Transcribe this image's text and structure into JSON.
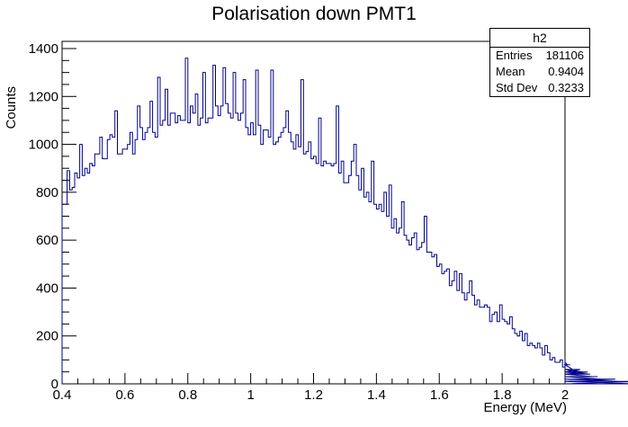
{
  "chart_data": {
    "type": "histogram",
    "title": "Polarisation down PMT1",
    "xlabel": "Energy (MeV)",
    "ylabel": "Counts",
    "xlim": [
      0.4,
      2.0
    ],
    "ylim": [
      0,
      1430
    ],
    "x_ticks": [
      0.4,
      0.6,
      0.8,
      1.0,
      1.2,
      1.4,
      1.6,
      1.8,
      2.0
    ],
    "x_tick_labels": [
      "0.4",
      "0.6",
      "0.8",
      "1",
      "1.2",
      "1.4",
      "1.6",
      "1.8",
      "2"
    ],
    "y_ticks": [
      0,
      200,
      400,
      600,
      800,
      1000,
      1200,
      1400
    ],
    "y_tick_labels": [
      "0",
      "200",
      "400",
      "600",
      "800",
      "1000",
      "1200",
      "1400"
    ],
    "bin_width": 0.008,
    "line_color": "#00008b",
    "values": [
      750,
      750,
      890,
      810,
      820,
      880,
      860,
      1000,
      870,
      900,
      880,
      920,
      910,
      960,
      960,
      1030,
      940,
      940,
      1020,
      1040,
      1030,
      1140,
      960,
      960,
      980,
      980,
      1000,
      1050,
      960,
      1020,
      1160,
      1070,
      1020,
      1050,
      1070,
      1180,
      1050,
      1030,
      1280,
      1080,
      1100,
      1230,
      1080,
      1130,
      1130,
      1090,
      1120,
      1100,
      1100,
      1360,
      1090,
      1160,
      1130,
      1210,
      1080,
      1110,
      1300,
      1090,
      1110,
      1110,
      1330,
      1160,
      1120,
      1160,
      1320,
      1170,
      1130,
      1110,
      1300,
      1130,
      1100,
      1130,
      1270,
      1070,
      1040,
      1090,
      1040,
      1310,
      1080,
      1000,
      1060,
      1060,
      1030,
      1310,
      1000,
      1010,
      1030,
      1050,
      1070,
      1140,
      1050,
      1010,
      980,
      1040,
      990,
      1270,
      960,
      970,
      1010,
      940,
      950,
      920,
      1110,
      910,
      930,
      920,
      920,
      910,
      920,
      1160,
      880,
      930,
      840,
      840,
      870,
      930,
      1000,
      870,
      810,
      900,
      780,
      800,
      760,
      930,
      750,
      730,
      750,
      720,
      800,
      700,
      830,
      650,
      690,
      630,
      650,
      760,
      620,
      600,
      580,
      610,
      630,
      560,
      570,
      590,
      700,
      550,
      550,
      530,
      540,
      490,
      500,
      460,
      470,
      480,
      410,
      430,
      470,
      390,
      460,
      380,
      350,
      380,
      430,
      370,
      330,
      350,
      320,
      320,
      330,
      320,
      260,
      290,
      300,
      260,
      330,
      270,
      260,
      250,
      280,
      230,
      210,
      200,
      220,
      180,
      210,
      160,
      170,
      160,
      150,
      170,
      150,
      120,
      160,
      130,
      100,
      110,
      90,
      90,
      100,
      70,
      90,
      80,
      80,
      60,
      60,
      50,
      60,
      50,
      40,
      50,
      40,
      30,
      30,
      30,
      20,
      20,
      20,
      20,
      20,
      10,
      20,
      10,
      10,
      10,
      10,
      10,
      10,
      0,
      10
    ]
  },
  "stats": {
    "name": "h2",
    "rows": [
      {
        "label": "Entries",
        "value": "181106"
      },
      {
        "label": "Mean",
        "value": "0.9404"
      },
      {
        "label": "Std Dev",
        "value": "0.3233"
      }
    ]
  }
}
